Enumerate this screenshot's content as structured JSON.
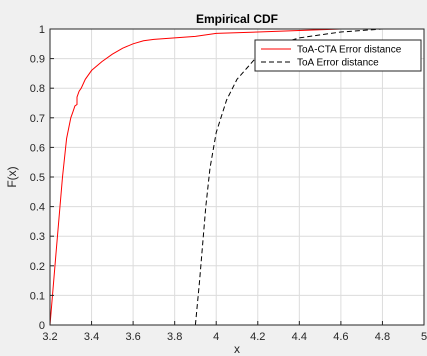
{
  "chart_data": {
    "type": "line",
    "title": "Empirical CDF",
    "xlabel": "x",
    "ylabel": "F(x)",
    "xlim": [
      3.2,
      5.0
    ],
    "ylim": [
      0,
      1
    ],
    "xticks": [
      "3.2",
      "3.4",
      "3.6",
      "3.8",
      "4",
      "4.2",
      "4.4",
      "4.6",
      "4.8",
      "5"
    ],
    "yticks": [
      "0",
      "0.1",
      "0.2",
      "0.3",
      "0.4",
      "0.5",
      "0.6",
      "0.7",
      "0.8",
      "0.9",
      "1"
    ],
    "grid": true,
    "legend_position": "top-right",
    "series": [
      {
        "name": "ToA-CTA Error distance",
        "color": "#ff0000",
        "style": "solid",
        "x": [
          3.2,
          3.23,
          3.26,
          3.28,
          3.3,
          3.31,
          3.32,
          3.33,
          3.33,
          3.34,
          3.35,
          3.37,
          3.4,
          3.45,
          3.5,
          3.55,
          3.6,
          3.65,
          3.7,
          3.8,
          3.9,
          4.0,
          4.2,
          4.4,
          4.6,
          4.8,
          5.0
        ],
        "y": [
          0.0,
          0.25,
          0.5,
          0.63,
          0.7,
          0.72,
          0.74,
          0.745,
          0.77,
          0.79,
          0.8,
          0.83,
          0.86,
          0.89,
          0.915,
          0.935,
          0.95,
          0.96,
          0.965,
          0.97,
          0.975,
          0.985,
          0.99,
          0.995,
          1.0,
          1.0,
          1.0
        ]
      },
      {
        "name": "ToA Error distance",
        "color": "#000000",
        "style": "dashed",
        "x": [
          3.9,
          3.92,
          3.95,
          3.97,
          4.0,
          4.05,
          4.1,
          4.15,
          4.2,
          4.3,
          4.4,
          4.5,
          4.6,
          4.7,
          4.8,
          4.9,
          5.0
        ],
        "y": [
          0.0,
          0.15,
          0.4,
          0.53,
          0.65,
          0.76,
          0.83,
          0.87,
          0.91,
          0.95,
          0.97,
          0.98,
          0.99,
          0.995,
          1.0,
          1.0,
          1.0
        ]
      }
    ]
  }
}
